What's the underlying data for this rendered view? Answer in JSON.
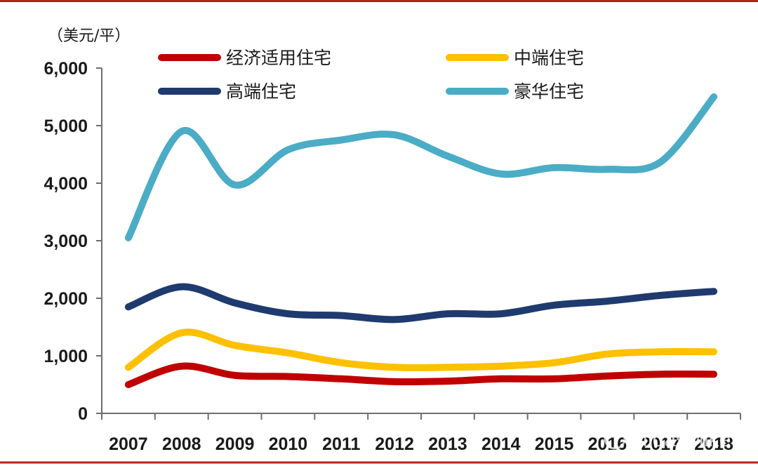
{
  "chart_data": {
    "type": "line",
    "title": "",
    "xlabel": "",
    "ylabel": "",
    "unit_label": "（美元/平）",
    "categories": [
      "2007",
      "2008",
      "2009",
      "2010",
      "2011",
      "2012",
      "2013",
      "2014",
      "2015",
      "2016",
      "2017",
      "2018"
    ],
    "yticks": [
      "0",
      "1,000",
      "2,000",
      "3,000",
      "4,000",
      "5,000",
      "6,000"
    ],
    "ylim": [
      0,
      6000
    ],
    "grid": false,
    "legend_position": "top",
    "series": [
      {
        "name": "经济适用住宅",
        "color": "#c00000",
        "values": [
          500,
          820,
          660,
          640,
          600,
          550,
          560,
          600,
          600,
          650,
          680,
          680
        ]
      },
      {
        "name": "中端住宅",
        "color": "#ffc000",
        "values": [
          800,
          1400,
          1180,
          1050,
          880,
          800,
          800,
          820,
          880,
          1030,
          1070,
          1070
        ]
      },
      {
        "name": "高端住宅",
        "color": "#1f3a6e",
        "values": [
          1850,
          2200,
          1920,
          1730,
          1700,
          1630,
          1730,
          1730,
          1880,
          1950,
          2050,
          2120
        ]
      },
      {
        "name": "豪华住宅",
        "color": "#4bacc6",
        "values": [
          3050,
          4900,
          3970,
          4580,
          4750,
          4840,
          4470,
          4160,
          4270,
          4240,
          4370,
          5500
        ]
      }
    ]
  },
  "watermark": "MidasMike"
}
